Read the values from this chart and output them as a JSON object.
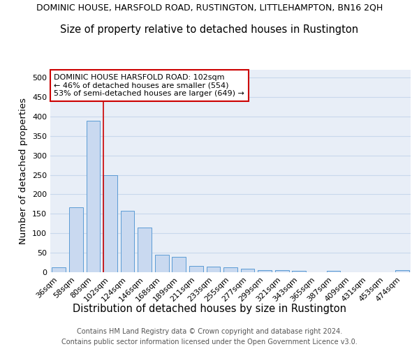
{
  "title": "DOMINIC HOUSE, HARSFOLD ROAD, RUSTINGTON, LITTLEHAMPTON, BN16 2QH",
  "subtitle": "Size of property relative to detached houses in Rustington",
  "xlabel": "Distribution of detached houses by size in Rustington",
  "ylabel": "Number of detached properties",
  "categories": [
    "36sqm",
    "58sqm",
    "80sqm",
    "102sqm",
    "124sqm",
    "146sqm",
    "168sqm",
    "189sqm",
    "211sqm",
    "233sqm",
    "255sqm",
    "277sqm",
    "299sqm",
    "321sqm",
    "343sqm",
    "365sqm",
    "387sqm",
    "409sqm",
    "431sqm",
    "453sqm",
    "474sqm"
  ],
  "values": [
    13,
    167,
    390,
    250,
    157,
    115,
    44,
    40,
    17,
    15,
    13,
    9,
    6,
    5,
    4,
    0,
    4,
    0,
    0,
    0,
    5
  ],
  "bar_color": "#c9d9f0",
  "bar_edge_color": "#5b9bd5",
  "grid_color": "#c8d8ec",
  "bg_color": "#e8eef7",
  "vline_x_index": 3,
  "vline_color": "#cc0000",
  "ylim": [
    0,
    520
  ],
  "yticks": [
    0,
    50,
    100,
    150,
    200,
    250,
    300,
    350,
    400,
    450,
    500
  ],
  "annotation_text": "DOMINIC HOUSE HARSFOLD ROAD: 102sqm\n← 46% of detached houses are smaller (554)\n53% of semi-detached houses are larger (649) →",
  "annotation_box_color": "#ffffff",
  "annotation_box_edge": "#cc0000",
  "footer_line1": "Contains HM Land Registry data © Crown copyright and database right 2024.",
  "footer_line2": "Contains public sector information licensed under the Open Government Licence v3.0.",
  "title_fontsize": 9.0,
  "subtitle_fontsize": 10.5,
  "xlabel_fontsize": 10.5,
  "ylabel_fontsize": 9.5,
  "tick_fontsize": 8.0,
  "annotation_fontsize": 8.0,
  "footer_fontsize": 7.0
}
